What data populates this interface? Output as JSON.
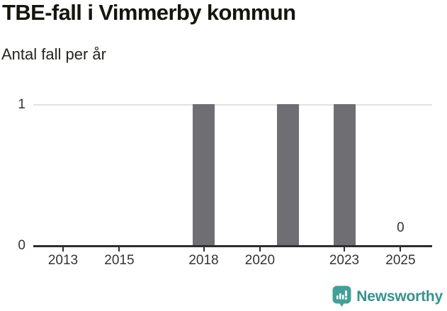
{
  "chart_data": {
    "type": "bar",
    "title": "TBE-fall i Vimmerby kommun",
    "subtitle": "Antal fall per år",
    "x": [
      2013,
      2014,
      2015,
      2016,
      2017,
      2018,
      2019,
      2020,
      2021,
      2022,
      2023,
      2024,
      2025
    ],
    "values": [
      0,
      0,
      0,
      0,
      0,
      1,
      0,
      0,
      1,
      0,
      1,
      0,
      0
    ],
    "x_ticks": [
      2013,
      2015,
      2018,
      2020,
      2023,
      2025
    ],
    "x_tick_labels": [
      "2013",
      "2015",
      "2018",
      "2020",
      "2023",
      "2025"
    ],
    "y_ticks": [
      0,
      1
    ],
    "y_tick_labels": [
      "0",
      "1"
    ],
    "ylim": [
      0,
      1
    ],
    "xlim": [
      2012,
      2026
    ],
    "grid": "horizontal gridline at y=1 only",
    "legend": "none",
    "bar_color": "#6e6e73",
    "annotation": {
      "x": 2025,
      "text": "0"
    }
  },
  "logo": {
    "text": "Newsworthy",
    "icon": "newsworthy-pin-bar-chart-icon",
    "color": "#35938c",
    "icon_color": "#41a098"
  },
  "colors": {
    "bar": "#6e6e73",
    "axis_line": "#2d2d2d",
    "gridline": "#e2e2e2",
    "tick_text": "#333333",
    "title_text": "#15150f",
    "accent_teal": "#35938c"
  }
}
